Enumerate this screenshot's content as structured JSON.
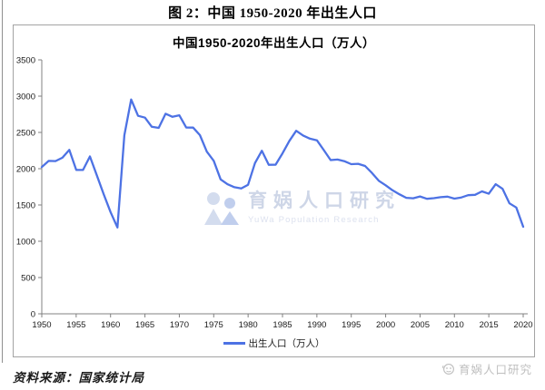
{
  "figure_title": "图 2：中国 1950-2020 年出生人口",
  "chart": {
    "title": "中国1950-2020年出生人口（万人）",
    "legend_label": "出生人口（万人）"
  },
  "watermark": {
    "center_cn": "育娲人口研究",
    "center_en": "YuWa Population Research",
    "corner": "育娲人口研究"
  },
  "source_note": "资料来源：国家统计局",
  "colors": {
    "line": "#4d72e4",
    "axis": "#808080",
    "tick_label": "#1a1a1a",
    "box_border": "#a3a3a3",
    "watermark": "#c6cfe3"
  },
  "chart_data": {
    "type": "line",
    "title": "中国1950-2020年出生人口（万人）",
    "x": [
      1950,
      1951,
      1952,
      1953,
      1954,
      1955,
      1956,
      1957,
      1958,
      1959,
      1960,
      1961,
      1962,
      1963,
      1964,
      1965,
      1966,
      1967,
      1968,
      1969,
      1970,
      1971,
      1972,
      1973,
      1974,
      1975,
      1976,
      1977,
      1978,
      1979,
      1980,
      1981,
      1982,
      1983,
      1984,
      1985,
      1986,
      1987,
      1988,
      1989,
      1990,
      1991,
      1992,
      1993,
      1994,
      1995,
      1996,
      1997,
      1998,
      1999,
      2000,
      2001,
      2002,
      2003,
      2004,
      2005,
      2006,
      2007,
      2008,
      2009,
      2010,
      2011,
      2012,
      2013,
      2014,
      2015,
      2016,
      2017,
      2018,
      2019,
      2020
    ],
    "series": [
      {
        "name": "出生人口（万人）",
        "values": [
          2023,
          2107,
          2105,
          2151,
          2260,
          1984,
          1982,
          2169,
          1909,
          1650,
          1402,
          1190,
          2460,
          2954,
          2729,
          2704,
          2577,
          2563,
          2757,
          2715,
          2736,
          2567,
          2566,
          2463,
          2235,
          2109,
          1853,
          1786,
          1745,
          1727,
          1779,
          2078,
          2247,
          2054,
          2055,
          2211,
          2384,
          2523,
          2457,
          2414,
          2391,
          2258,
          2119,
          2126,
          2104,
          2063,
          2067,
          2038,
          1942,
          1834,
          1771,
          1702,
          1647,
          1599,
          1593,
          1617,
          1585,
          1594,
          1608,
          1615,
          1588,
          1604,
          1635,
          1640,
          1687,
          1655,
          1786,
          1723,
          1523,
          1465,
          1200
        ]
      }
    ],
    "xlabel": "",
    "ylabel": "",
    "xlim": [
      1950,
      2020
    ],
    "ylim": [
      0,
      3500
    ],
    "xticks": [
      1950,
      1955,
      1960,
      1965,
      1970,
      1975,
      1980,
      1985,
      1990,
      1995,
      2000,
      2005,
      2010,
      2015,
      2020
    ],
    "yticks": [
      0,
      500,
      1000,
      1500,
      2000,
      2500,
      3000,
      3500
    ],
    "grid": false,
    "legend_position": "bottom"
  }
}
